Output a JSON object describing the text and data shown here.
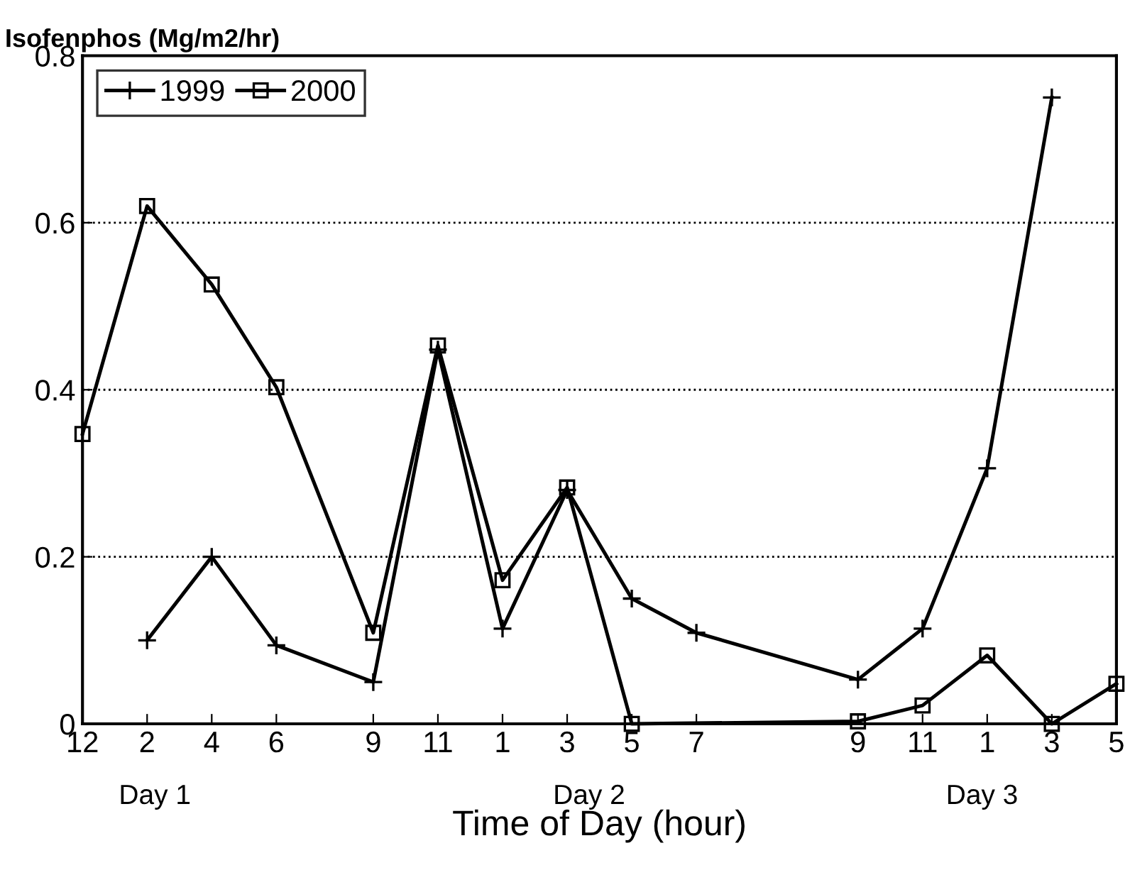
{
  "chart_data": {
    "type": "line",
    "ylabel": "Isofenphos (Mg/m2/hr)",
    "xlabel": "Time of Day (hour)",
    "annotations": [
      "Day 1",
      "Day 2",
      "Day 3"
    ],
    "categories": [
      "12",
      null,
      "2",
      null,
      "4",
      null,
      "6",
      null,
      null,
      "9",
      null,
      "11",
      null,
      "1",
      null,
      "3",
      null,
      "5",
      null,
      "7",
      null,
      null,
      null,
      null,
      "9",
      null,
      "11",
      null,
      "1",
      null,
      "3",
      null,
      "5"
    ],
    "ylim": [
      0,
      0.8
    ],
    "yticks": [
      0,
      0.2,
      0.4,
      0.6,
      0.8
    ],
    "grid": "y",
    "legend": "top left",
    "series": [
      {
        "name": "1999",
        "color": "#000000",
        "marker": "cross",
        "values": [
          null,
          null,
          0.1,
          null,
          0.2,
          null,
          0.094,
          null,
          null,
          0.05,
          null,
          0.448,
          null,
          0.114,
          null,
          0.28,
          null,
          0.15,
          null,
          0.109,
          null,
          null,
          null,
          null,
          0.053,
          null,
          0.114,
          null,
          0.306,
          null,
          0.75,
          null,
          null
        ]
      },
      {
        "name": "2000",
        "color": "#000000",
        "marker": "square",
        "values": [
          0.347,
          null,
          0.62,
          null,
          0.526,
          null,
          0.403,
          null,
          null,
          0.109,
          null,
          0.453,
          null,
          0.172,
          null,
          0.283,
          null,
          0.0,
          null,
          null,
          null,
          null,
          null,
          null,
          0.003,
          null,
          0.022,
          null,
          0.082,
          null,
          0.0,
          null,
          0.048
        ]
      }
    ]
  }
}
